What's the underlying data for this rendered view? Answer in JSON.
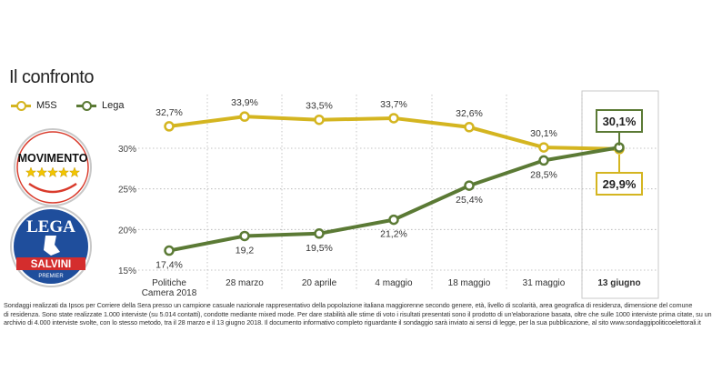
{
  "header": {
    "title": "Il confronto"
  },
  "legend": {
    "items": [
      {
        "label": "M5S",
        "color": "#d4b520"
      },
      {
        "label": "Lega",
        "color": "#5b7a35"
      }
    ]
  },
  "logos": {
    "m5s_text": "MOVIMENTO",
    "lega_text": "LEGA",
    "lega_salvini": "SALVINI",
    "lega_premier": "PREMIER"
  },
  "chart_data": {
    "type": "line",
    "title": "Il confronto",
    "categories": [
      "Politiche Camera 2018",
      "28 marzo",
      "20 aprile",
      "4 maggio",
      "18 maggio",
      "31 maggio",
      "13 giugno"
    ],
    "category_lines": [
      [
        "Politiche",
        "Camera 2018"
      ],
      [
        "28 marzo"
      ],
      [
        "20 aprile"
      ],
      [
        "4 maggio"
      ],
      [
        "18 maggio"
      ],
      [
        "31 maggio"
      ],
      [
        "13 giugno"
      ]
    ],
    "highlighted_category": "13 giugno",
    "ylim": [
      14,
      36
    ],
    "yticks": [
      15,
      20,
      25,
      30
    ],
    "ytick_labels": [
      "15%",
      "20%",
      "25%",
      "30%"
    ],
    "grid": "horizontal dotted",
    "legend_position": "top-left",
    "series": [
      {
        "name": "M5S",
        "color": "#d4b520",
        "values": [
          32.7,
          33.9,
          33.5,
          33.7,
          32.6,
          30.1,
          29.9
        ],
        "labels": [
          "32,7%",
          "33,9%",
          "33,5%",
          "33,7%",
          "32,6%",
          "30,1%",
          "29,9%"
        ]
      },
      {
        "name": "Lega",
        "color": "#5b7a35",
        "values": [
          17.4,
          19.2,
          19.5,
          21.2,
          25.4,
          28.5,
          30.1
        ],
        "labels": [
          "17,4%",
          "19,2",
          "19,5%",
          "21,2%",
          "25,4%",
          "28,5%",
          "30,1%"
        ]
      }
    ]
  },
  "footnote": {
    "lines": [
      "Sondaggi realizzati da Ipsos per Corriere della Sera presso un campione casuale nazionale rappresentativo della popolazione italiana maggiorenne secondo genere, età, livello di scolarità, area geografica di residenza, dimensione del comune",
      "di residenza. Sono state realizzate 1.000 interviste (su 5.014 contatti), condotte mediante mixed mode. Per dare stabilità alle stime di voto i risultati presentati sono il prodotto di un'elaborazione basata, oltre che sulle 1000 interviste prima citate, su un",
      "archivio di 4.000 interviste svolte, con lo stesso metodo, tra il 28 marzo e il 13 giugno 2018. Il documento informativo completo riguardante il sondaggio sarà inviato ai sensi di legge, per la sua pubblicazione, al sito www.sondaggipoliticoelettorali.it"
    ]
  }
}
